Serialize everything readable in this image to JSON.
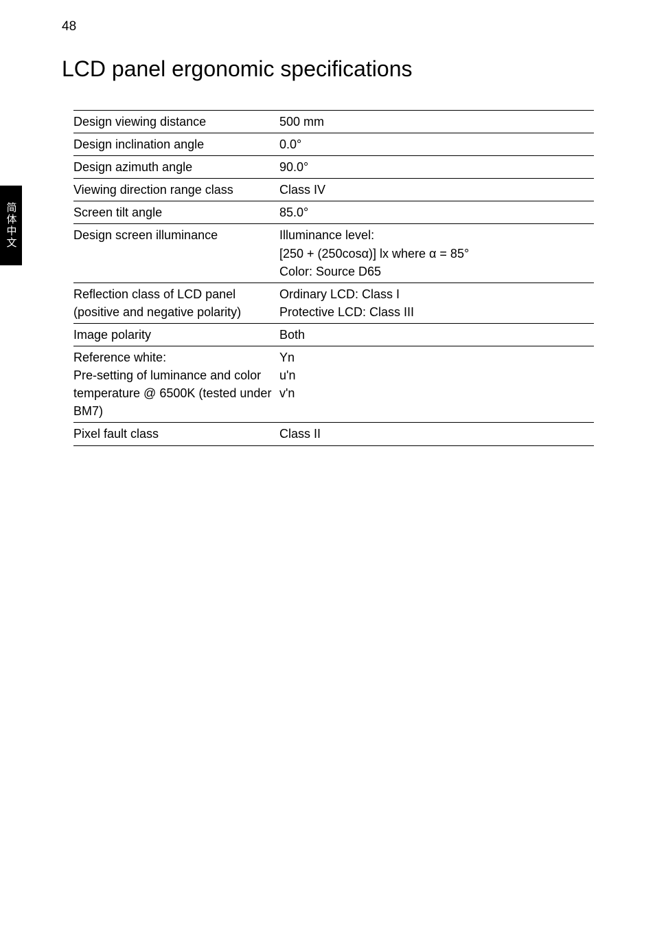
{
  "page_number": "48",
  "side_tab": "简体中文",
  "title": "LCD panel ergonomic specifications",
  "rows": [
    {
      "label": "Design viewing distance",
      "value": "500 mm",
      "bulleted": false
    },
    {
      "label": "Design inclination angle",
      "value": "0.0°",
      "bulleted": false
    },
    {
      "label": "Design azimuth angle",
      "value": "90.0°",
      "bulleted": false
    },
    {
      "label": "Viewing direction range class",
      "value": "Class IV",
      "bulleted": false
    },
    {
      "label": "Screen tilt angle",
      "value": "85.0°",
      "bulleted": false
    },
    {
      "label": "Design screen illuminance",
      "lines": [
        "Illuminance level:",
        "[250 + (250cosα)] lx where α = 85°",
        "Color: Source D65"
      ],
      "bulleted": true
    },
    {
      "label": "Reflection class of LCD panel (positive and negative polarity)",
      "lines": [
        "Ordinary LCD: Class I",
        "Protective LCD: Class III"
      ],
      "bulleted": true
    },
    {
      "label": "Image polarity",
      "value": "Both",
      "bulleted": false
    },
    {
      "label": "Reference white:\nPre-setting of luminance and color temperature @ 6500K (tested under BM7)",
      "lines": [
        "Yn",
        "u'n",
        "v'n"
      ],
      "bulleted": true
    },
    {
      "label": "Pixel fault class",
      "value": "Class II",
      "bulleted": false
    }
  ],
  "colors": {
    "page_bg": "#ffffff",
    "text": "#000000",
    "rule": "#000000",
    "tab_bg": "#000000",
    "tab_text": "#ffffff"
  },
  "fonts": {
    "title_size_pt": 32,
    "body_size_pt": 18,
    "page_number_size_pt": 19
  }
}
